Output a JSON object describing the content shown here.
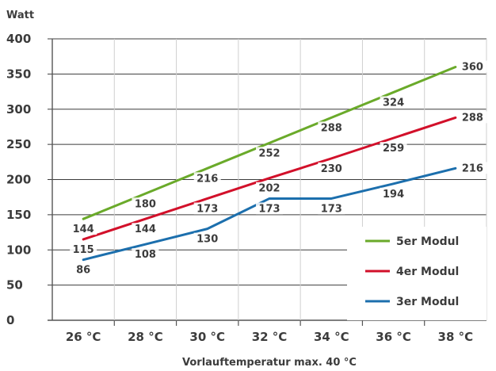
{
  "chart_data": {
    "type": "line",
    "ylabel": "Watt",
    "xlabel": "Vorlauftemperatur max. 40 °C",
    "categories": [
      "26 °C",
      "28 °C",
      "30 °C",
      "32 °C",
      "34 °C",
      "36 °C",
      "38 °C"
    ],
    "x_values": [
      26,
      28,
      30,
      32,
      34,
      36,
      38
    ],
    "ylim": [
      0,
      400
    ],
    "yticks": [
      "0",
      "50",
      "100",
      "150",
      "200",
      "250",
      "300",
      "350",
      "400"
    ],
    "grid": true,
    "legend_position": "bottom-right",
    "series": [
      {
        "name": "5er Modul",
        "color": "#6aaa2a",
        "values": [
          144,
          180,
          216,
          252,
          288,
          324,
          360
        ],
        "labels": [
          "144",
          "180",
          "216",
          "252",
          "288",
          "324",
          "360"
        ]
      },
      {
        "name": "4er Modul",
        "color": "#d2102a",
        "values": [
          115,
          144,
          173,
          202,
          230,
          259,
          288
        ],
        "labels": [
          "115",
          "144",
          "173",
          "202",
          "230",
          "259",
          "288"
        ]
      },
      {
        "name": "3er Modul",
        "color": "#1c6fad",
        "values": [
          86,
          108,
          130,
          173,
          173,
          194,
          216
        ],
        "labels": [
          "86",
          "108",
          "130",
          "173",
          "173",
          "194",
          "216"
        ]
      }
    ]
  }
}
